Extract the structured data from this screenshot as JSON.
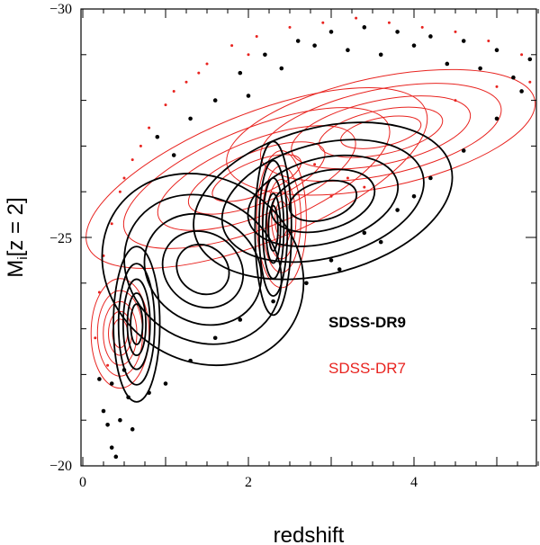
{
  "chart_data": {
    "type": "scatter",
    "title": "",
    "xlabel": "redshift",
    "ylabel_main": "M",
    "ylabel_sub": "i",
    "ylabel_rest": "[z = 2]",
    "xlim": [
      0,
      5.5
    ],
    "ylim": [
      -20,
      -30
    ],
    "x_ticks": [
      0,
      2,
      4
    ],
    "y_ticks": [
      -20,
      -25,
      -30
    ],
    "x_tick_labels": [
      "0",
      "2",
      "4"
    ],
    "y_tick_labels": [
      "−20",
      "−25",
      "−30"
    ],
    "legend_position": "right-middle",
    "series": [
      {
        "name": "SDSS-DR9",
        "color": "#000000",
        "contour_blobs": [
          {
            "cx": 0.65,
            "cy": -23.1,
            "rx": 0.28,
            "ry": 1.7,
            "angle": 0
          },
          {
            "cx": 2.3,
            "cy": -25.2,
            "rx": 0.22,
            "ry": 1.9,
            "angle": 0
          },
          {
            "cx": 1.45,
            "cy": -24.3,
            "rx": 1.1,
            "ry": 2.3,
            "angle": -55
          },
          {
            "cx": 2.9,
            "cy": -25.8,
            "rx": 1.6,
            "ry": 1.6,
            "angle": -15
          }
        ],
        "points": [
          [
            0.25,
            -21.2
          ],
          [
            0.3,
            -20.9
          ],
          [
            0.35,
            -20.4
          ],
          [
            0.4,
            -20.2
          ],
          [
            0.45,
            -21.0
          ],
          [
            0.55,
            -21.5
          ],
          [
            0.6,
            -20.8
          ],
          [
            0.35,
            -21.8
          ],
          [
            0.2,
            -21.9
          ],
          [
            0.5,
            -22.1
          ],
          [
            0.8,
            -21.6
          ],
          [
            1.0,
            -21.8
          ],
          [
            1.3,
            -22.3
          ],
          [
            1.6,
            -22.8
          ],
          [
            1.9,
            -23.2
          ],
          [
            2.3,
            -23.6
          ],
          [
            2.7,
            -24.0
          ],
          [
            3.0,
            -24.5
          ],
          [
            3.4,
            -25.1
          ],
          [
            3.8,
            -25.6
          ],
          [
            4.2,
            -26.3
          ],
          [
            4.6,
            -26.9
          ],
          [
            5.0,
            -27.6
          ],
          [
            5.3,
            -28.2
          ],
          [
            3.1,
            -24.3
          ],
          [
            3.6,
            -24.9
          ],
          [
            4.0,
            -25.9
          ],
          [
            0.9,
            -27.2
          ],
          [
            1.1,
            -26.8
          ],
          [
            1.3,
            -27.6
          ],
          [
            1.6,
            -28.0
          ],
          [
            1.9,
            -28.6
          ],
          [
            2.2,
            -29.0
          ],
          [
            2.6,
            -29.3
          ],
          [
            3.0,
            -29.5
          ],
          [
            3.4,
            -29.6
          ],
          [
            3.8,
            -29.5
          ],
          [
            4.2,
            -29.4
          ],
          [
            4.6,
            -29.3
          ],
          [
            5.0,
            -29.1
          ],
          [
            5.4,
            -28.9
          ],
          [
            2.0,
            -28.1
          ],
          [
            2.4,
            -28.7
          ],
          [
            2.8,
            -29.2
          ],
          [
            3.2,
            -29.1
          ],
          [
            3.6,
            -29.0
          ],
          [
            4.0,
            -29.2
          ],
          [
            4.4,
            -28.8
          ],
          [
            4.8,
            -28.7
          ],
          [
            5.2,
            -28.5
          ]
        ]
      },
      {
        "name": "SDSS-DR7",
        "color": "#e8231f",
        "contour_blobs": [
          {
            "cx": 0.45,
            "cy": -22.9,
            "rx": 0.35,
            "ry": 1.2,
            "angle": 0
          },
          {
            "cx": 2.1,
            "cy": -26.3,
            "rx": 2.2,
            "ry": 1.4,
            "angle": -22
          },
          {
            "cx": 2.4,
            "cy": -25.4,
            "rx": 0.3,
            "ry": 1.5,
            "angle": 0
          },
          {
            "cx": 3.6,
            "cy": -27.3,
            "rx": 1.9,
            "ry": 1.2,
            "angle": -12
          }
        ],
        "points": [
          [
            0.2,
            -23.8
          ],
          [
            0.25,
            -24.6
          ],
          [
            0.35,
            -25.3
          ],
          [
            0.45,
            -26.0
          ],
          [
            0.6,
            -26.7
          ],
          [
            0.8,
            -27.4
          ],
          [
            1.0,
            -27.9
          ],
          [
            1.25,
            -28.4
          ],
          [
            1.5,
            -28.8
          ],
          [
            1.8,
            -29.2
          ],
          [
            2.1,
            -29.4
          ],
          [
            2.5,
            -29.6
          ],
          [
            2.9,
            -29.7
          ],
          [
            3.3,
            -29.8
          ],
          [
            3.7,
            -29.7
          ],
          [
            4.1,
            -29.6
          ],
          [
            4.5,
            -29.5
          ],
          [
            4.9,
            -29.3
          ],
          [
            5.3,
            -29.0
          ],
          [
            0.15,
            -22.8
          ],
          [
            0.3,
            -22.2
          ],
          [
            0.5,
            -26.3
          ],
          [
            0.7,
            -27.0
          ],
          [
            1.1,
            -28.2
          ],
          [
            1.4,
            -28.6
          ],
          [
            2.0,
            -29.0
          ],
          [
            3.2,
            -26.3
          ],
          [
            3.4,
            -26.1
          ],
          [
            3.0,
            -25.9
          ],
          [
            2.8,
            -26.6
          ],
          [
            4.5,
            -28.0
          ],
          [
            5.0,
            -28.3
          ],
          [
            5.4,
            -28.4
          ]
        ]
      }
    ]
  }
}
